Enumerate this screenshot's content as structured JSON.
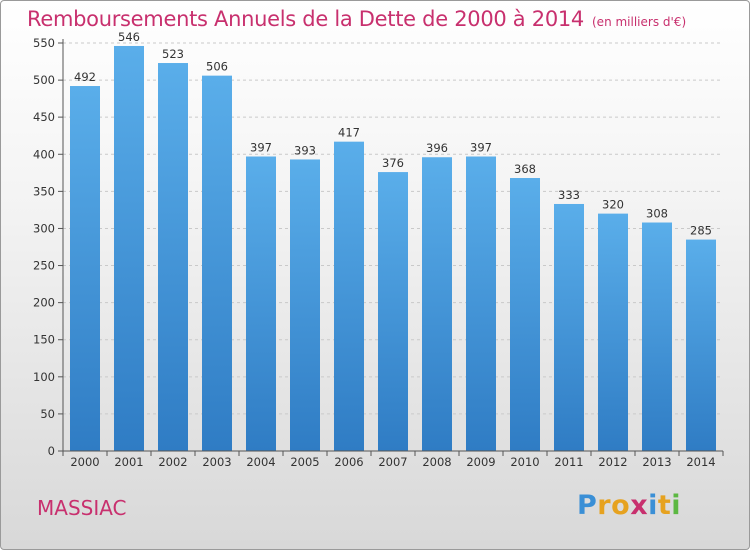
{
  "header": {
    "title": "Remboursements Annuels de la Dette de 2000 à 2014",
    "unit": "(en milliers d'€)"
  },
  "footer": {
    "commune": "MASSIAC",
    "logo": [
      "P",
      "r",
      "o",
      "x",
      "i",
      "t",
      "i"
    ],
    "logo_colors": [
      "#3a8fd6",
      "#e6a21f",
      "#e6a21f",
      "#c8306e",
      "#3a8fd6",
      "#e6a21f",
      "#5cb842"
    ]
  },
  "chart_data": {
    "type": "bar",
    "categories": [
      "2000",
      "2001",
      "2002",
      "2003",
      "2004",
      "2005",
      "2006",
      "2007",
      "2008",
      "2009",
      "2010",
      "2011",
      "2012",
      "2013",
      "2014"
    ],
    "values": [
      492,
      546,
      523,
      506,
      397,
      393,
      417,
      376,
      396,
      397,
      368,
      333,
      320,
      308,
      285
    ],
    "ylim": [
      0,
      550
    ],
    "yticks": [
      0,
      50,
      100,
      150,
      200,
      250,
      300,
      350,
      400,
      450,
      500,
      550
    ],
    "grid": true,
    "bar_color_top": "#5aaeea",
    "bar_color_bottom": "#2f7cc4"
  }
}
